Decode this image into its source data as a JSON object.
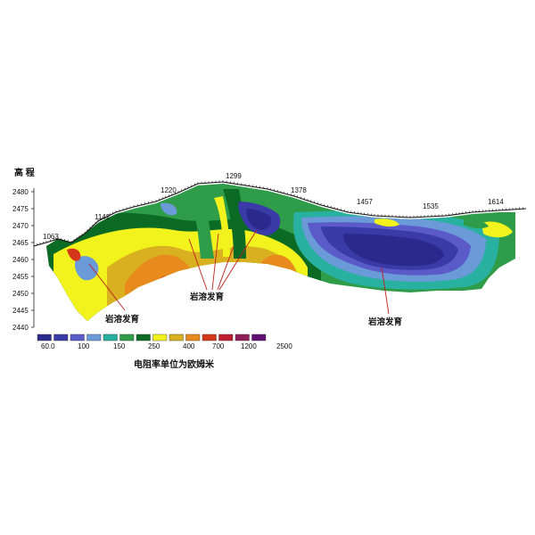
{
  "y_axis": {
    "label": "高 程",
    "ticks": [
      "2480",
      "2475",
      "2470",
      "2465",
      "2460",
      "2455",
      "2450",
      "2445",
      "2440"
    ]
  },
  "stations": [
    "1063",
    "1142",
    "1220",
    "1299",
    "1378",
    "1457",
    "1535",
    "1614"
  ],
  "annotations": [
    "岩溶发育",
    "岩溶发育",
    "岩溶发育"
  ],
  "legend": {
    "title": "电阻率单位为欧姆米",
    "labels": [
      "60.0",
      "100",
      "150",
      "250",
      "400",
      "700",
      "1200",
      "2500"
    ],
    "colors": [
      "#2a2a8c",
      "#3a3aa8",
      "#5a5ac8",
      "#6a9ad8",
      "#28b0a0",
      "#2f9c4a",
      "#0b6b24",
      "#f2f21c",
      "#d8b020",
      "#e88a1c",
      "#d4361a",
      "#c01e32",
      "#901f58",
      "#5e1070"
    ]
  }
}
